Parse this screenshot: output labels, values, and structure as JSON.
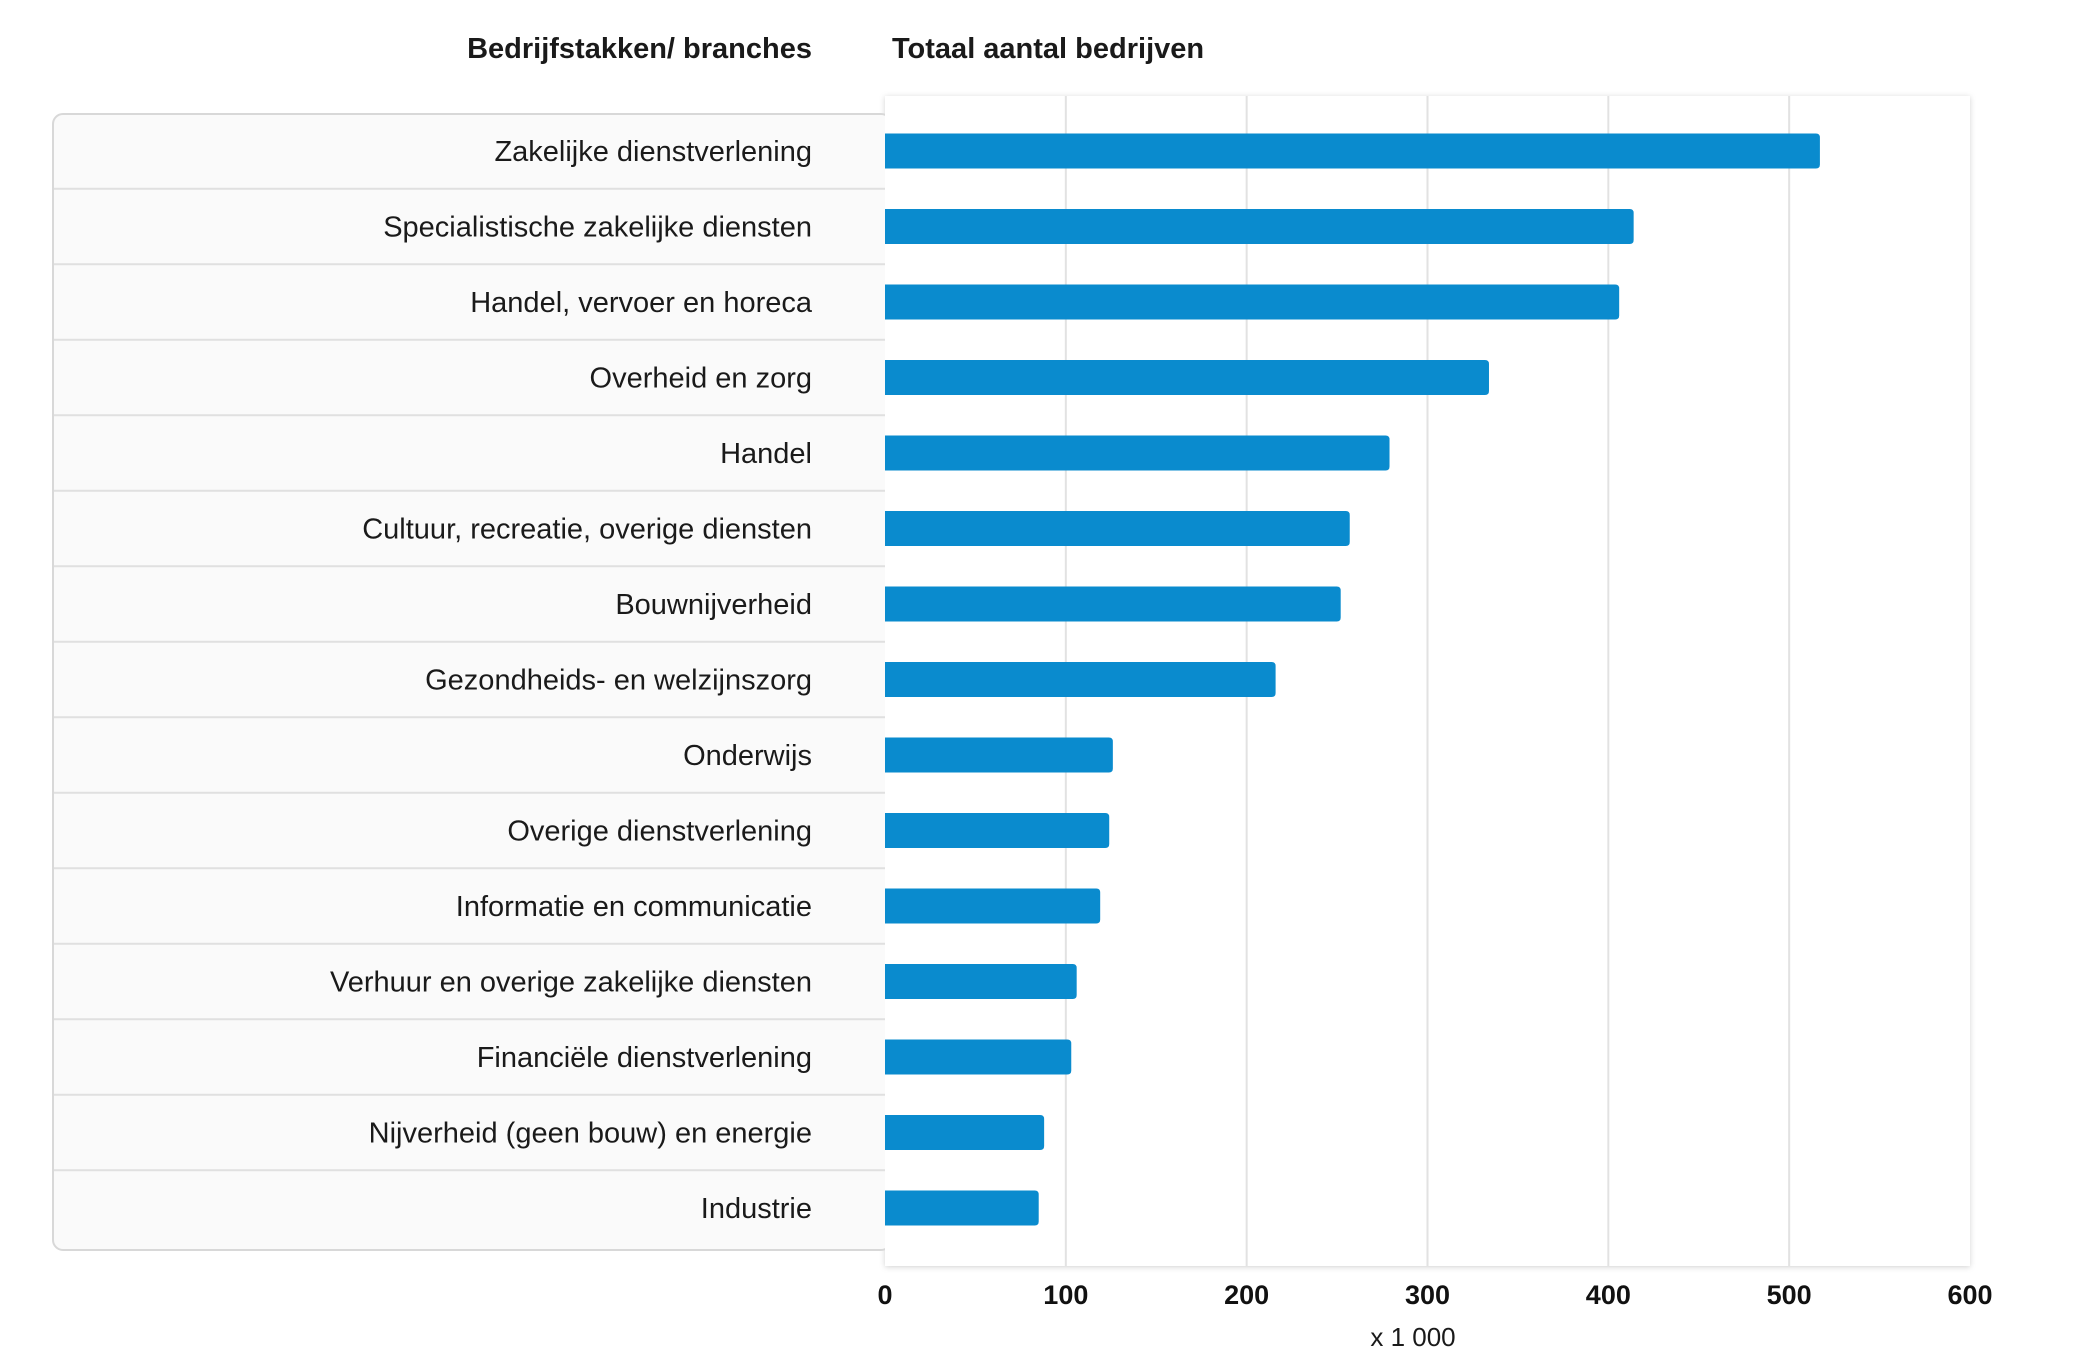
{
  "headers": {
    "categories": "Bedrijfstakken/ branches",
    "values": "Totaal aantal bedrijven"
  },
  "chart_data": {
    "type": "bar",
    "orientation": "horizontal",
    "categories": [
      "Zakelijke dienstverlening",
      "Specialistische zakelijke diensten",
      "Handel, vervoer en horeca",
      "Overheid en zorg",
      "Handel",
      "Cultuur, recreatie, overige diensten",
      "Bouwnijverheid",
      "Gezondheids- en welzijnszorg",
      "Onderwijs",
      "Overige dienstverlening",
      "Informatie en communicatie",
      "Verhuur en overige zakelijke diensten",
      "Financiële dienstverlening",
      "Nijverheid (geen bouw) en energie",
      "Industrie"
    ],
    "values": [
      517,
      414,
      406,
      334,
      279,
      257,
      252,
      216,
      126,
      124,
      119,
      106,
      103,
      88,
      85
    ],
    "xlim": [
      0,
      600
    ],
    "xticks": [
      "0",
      "100",
      "200",
      "300",
      "400",
      "500",
      "600"
    ],
    "xunit": "x 1 000",
    "grid": "vertical",
    "bar_color": "#0a8bce",
    "gridline_color": "#e2e2e2",
    "label_panel_color": "#fafafa"
  }
}
